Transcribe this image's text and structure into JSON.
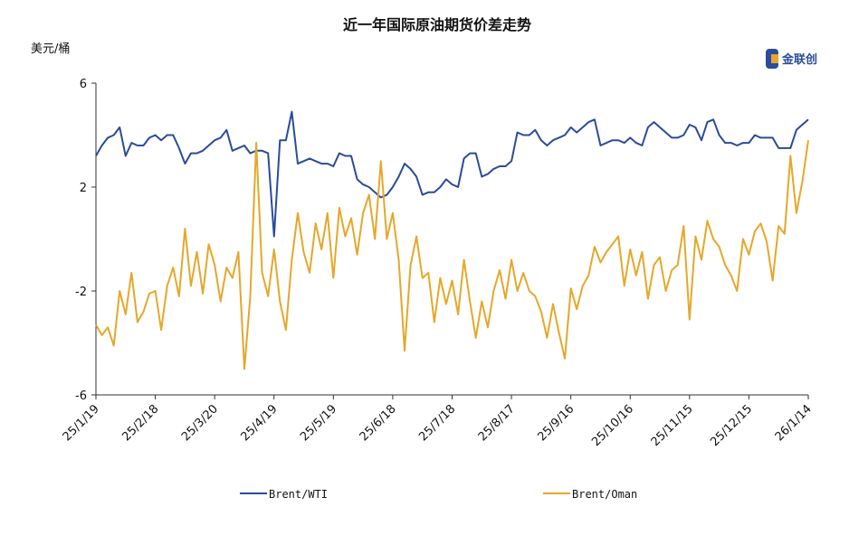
{
  "chart_data": {
    "type": "line",
    "title": "近一年国际原油期货价差走势",
    "y_axis_label": "美元/桶",
    "logo": "金联创",
    "categories": [
      "25/1/19",
      null,
      null,
      null,
      null,
      null,
      null,
      null,
      null,
      null,
      "25/2/18",
      null,
      null,
      null,
      null,
      null,
      null,
      null,
      null,
      null,
      "25/3/20",
      null,
      null,
      null,
      null,
      null,
      null,
      null,
      null,
      null,
      "25/4/19",
      null,
      null,
      null,
      null,
      null,
      null,
      null,
      null,
      null,
      "25/5/19",
      null,
      null,
      null,
      null,
      null,
      null,
      null,
      null,
      null,
      "25/6/18",
      null,
      null,
      null,
      null,
      null,
      null,
      null,
      null,
      null,
      "25/7/18",
      null,
      null,
      null,
      null,
      null,
      null,
      null,
      null,
      null,
      "25/8/17",
      null,
      null,
      null,
      null,
      null,
      null,
      null,
      null,
      null,
      "25/9/16",
      null,
      null,
      null,
      null,
      null,
      null,
      null,
      null,
      null,
      "25/10/16",
      null,
      null,
      null,
      null,
      null,
      null,
      null,
      null,
      null,
      "25/11/15",
      null,
      null,
      null,
      null,
      null,
      null,
      null,
      null,
      null,
      "25/12/15",
      null,
      null,
      null,
      null,
      null,
      null,
      null,
      null,
      null,
      "26/1/14"
    ],
    "series": [
      {
        "name": "Brent/WTI",
        "color": "#2b4b9b",
        "values": [
          3.2,
          3.6,
          3.9,
          4.0,
          4.3,
          3.2,
          3.7,
          3.6,
          3.6,
          3.9,
          4.0,
          3.8,
          4.0,
          4.0,
          3.5,
          2.9,
          3.3,
          3.3,
          3.4,
          3.6,
          3.8,
          3.9,
          4.2,
          3.4,
          3.5,
          3.6,
          3.3,
          3.4,
          3.4,
          3.3,
          0.1,
          3.8,
          3.8,
          4.9,
          2.9,
          3.0,
          3.1,
          3.0,
          2.9,
          2.9,
          2.8,
          3.3,
          3.2,
          3.2,
          2.3,
          2.1,
          2.0,
          1.8,
          1.6,
          1.7,
          2.0,
          2.4,
          2.9,
          2.7,
          2.4,
          1.7,
          1.8,
          1.8,
          2.0,
          2.3,
          2.1,
          2.0,
          3.1,
          3.3,
          3.3,
          2.4,
          2.5,
          2.7,
          2.8,
          2.8,
          3.0,
          4.1,
          4.0,
          4.0,
          4.2,
          3.8,
          3.6,
          3.8,
          3.9,
          4.0,
          4.3,
          4.1,
          4.3,
          4.5,
          4.6,
          3.6,
          3.7,
          3.8,
          3.8,
          3.7,
          3.9,
          3.7,
          3.6,
          4.3,
          4.5,
          4.3,
          4.1,
          3.9,
          3.9,
          4.0,
          4.4,
          4.3,
          3.8,
          4.5,
          4.6,
          4.0,
          3.7,
          3.7,
          3.6,
          3.7,
          3.7,
          4.0,
          3.9,
          3.9,
          3.9,
          3.5,
          3.5,
          3.5,
          4.2,
          4.4,
          4.6
        ]
      },
      {
        "name": "Brent/Oman",
        "color": "#e5a72a",
        "values": [
          -3.3,
          -3.7,
          -3.4,
          -4.1,
          -2.0,
          -2.9,
          -1.3,
          -3.2,
          -2.8,
          -2.1,
          -2.0,
          -3.5,
          -1.8,
          -1.1,
          -2.2,
          0.4,
          -1.8,
          -0.5,
          -2.1,
          -0.2,
          -1.0,
          -2.4,
          -1.1,
          -1.5,
          -0.5,
          -5.0,
          -2.2,
          3.7,
          -1.3,
          -2.2,
          -0.4,
          -2.4,
          -3.5,
          -0.8,
          1.0,
          -0.5,
          -1.3,
          0.6,
          -0.4,
          1.0,
          -1.5,
          1.2,
          0.1,
          0.8,
          -0.6,
          1.0,
          1.7,
          0.0,
          3.0,
          0.0,
          1.0,
          -0.8,
          -4.3,
          -1.0,
          0.1,
          -1.5,
          -1.3,
          -3.2,
          -1.5,
          -2.5,
          -1.6,
          -2.9,
          -0.8,
          -2.4,
          -3.8,
          -2.4,
          -3.4,
          -2.0,
          -1.2,
          -2.3,
          -0.8,
          -2.0,
          -1.3,
          -2.0,
          -2.2,
          -2.8,
          -3.8,
          -2.5,
          -3.6,
          -4.6,
          -1.9,
          -2.7,
          -1.8,
          -1.4,
          -0.3,
          -0.9,
          -0.5,
          -0.2,
          0.1,
          -1.8,
          -0.4,
          -1.4,
          -0.5,
          -2.3,
          -1.0,
          -0.7,
          -2.0,
          -1.2,
          -1.0,
          0.5,
          -3.1,
          0.1,
          -0.8,
          0.7,
          0.0,
          -0.3,
          -1.0,
          -1.4,
          -2.0,
          0.0,
          -0.6,
          0.3,
          0.6,
          -0.1,
          -1.6,
          0.5,
          0.2,
          3.2,
          1.0,
          2.2,
          3.8
        ]
      }
    ],
    "ylim": [
      -6,
      6
    ],
    "yticks": [
      -6,
      -2,
      2,
      6
    ],
    "legend": "bottom"
  }
}
